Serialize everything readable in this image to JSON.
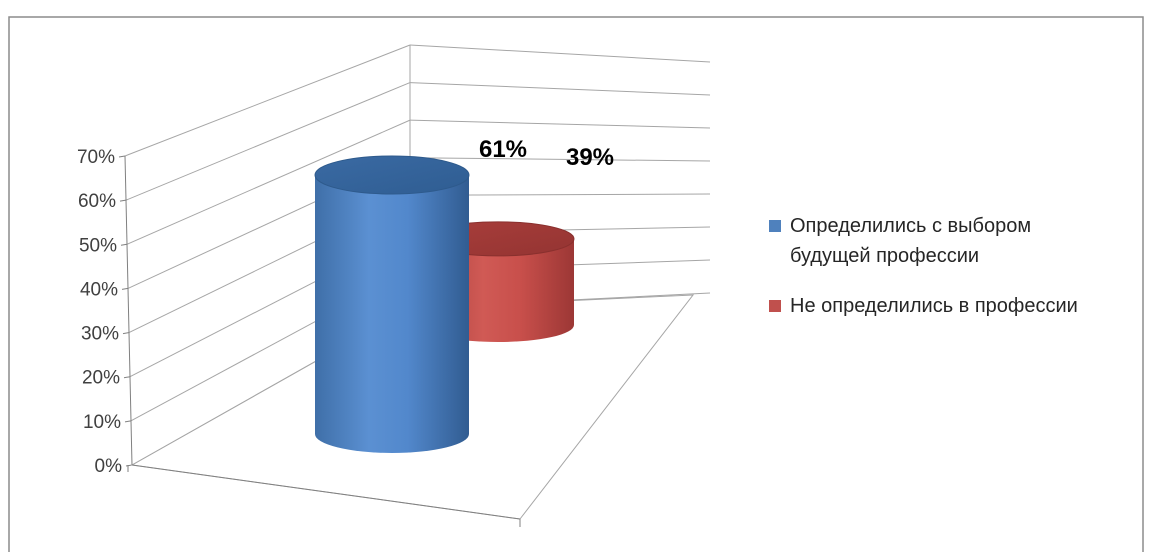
{
  "chart_data": {
    "type": "bar",
    "style": "3d-cylinder",
    "series": [
      {
        "name": "Определились с выбором будущей профессии",
        "value": 61,
        "data_label": "61%",
        "color": "#4f81bd"
      },
      {
        "name": "Не определились в профессии",
        "value": 39,
        "data_label": "39%",
        "color": "#c0504d"
      }
    ],
    "ylim": [
      0,
      70
    ],
    "yticks": [
      "0%",
      "10%",
      "20%",
      "30%",
      "40%",
      "50%",
      "60%",
      "70%"
    ],
    "grid": true,
    "legend_position": "right"
  },
  "legend": [
    {
      "lines": [
        "Определились с выбором",
        "будущей профессии"
      ]
    },
    {
      "lines": [
        "Не определились в профессии"
      ]
    }
  ]
}
